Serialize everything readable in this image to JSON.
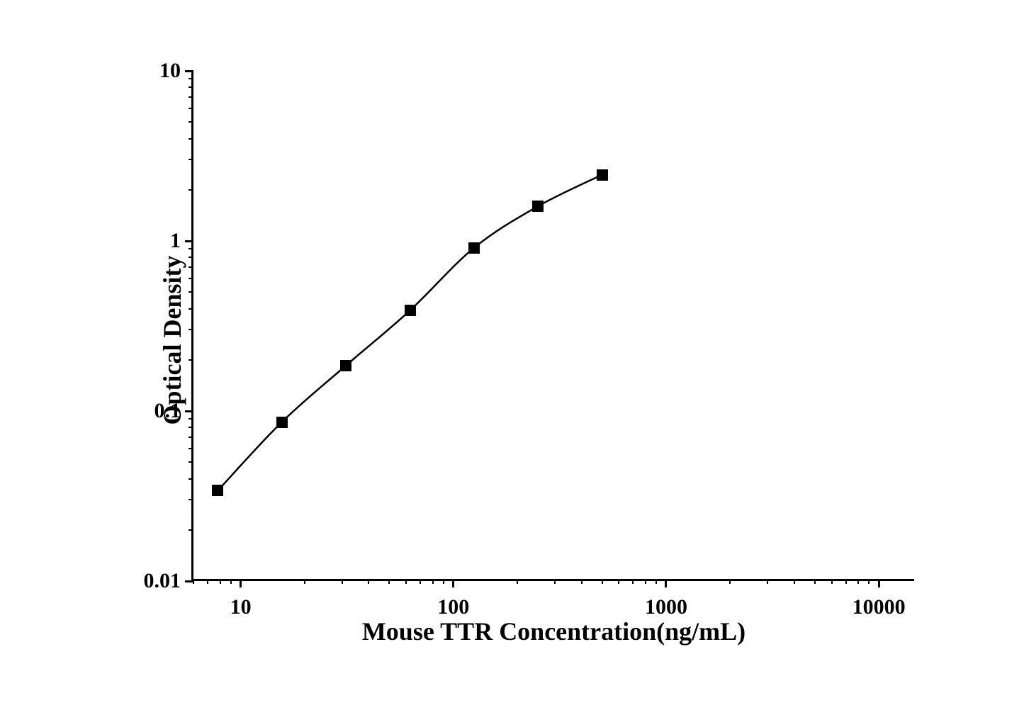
{
  "chart": {
    "type": "scatter-line",
    "xlabel": "Mouse TTR Concentration(ng/mL)",
    "ylabel": "Optical Density",
    "label_fontsize": 36,
    "tick_fontsize": 30,
    "background_color": "#ffffff",
    "line_color": "#000000",
    "marker_color": "#000000",
    "axis_color": "#000000",
    "line_width": 2.5,
    "marker_size": 16,
    "marker_style": "square",
    "x_scale": "log",
    "y_scale": "log",
    "xlim": [
      6,
      15000
    ],
    "ylim": [
      0.01,
      10
    ],
    "x_major_ticks": [
      10,
      100,
      1000,
      10000
    ],
    "y_major_ticks": [
      0.01,
      0.1,
      1,
      10
    ],
    "x_tick_labels": [
      "10",
      "100",
      "1000",
      "10000"
    ],
    "y_tick_labels": [
      "0.01",
      "0.1",
      "1",
      "10"
    ],
    "x_minor_ticks": [
      6,
      7,
      8,
      9,
      20,
      30,
      40,
      50,
      60,
      70,
      80,
      90,
      200,
      300,
      400,
      500,
      600,
      700,
      800,
      900,
      2000,
      3000,
      4000,
      5000,
      6000,
      7000,
      8000,
      9000
    ],
    "y_minor_ticks": [
      0.02,
      0.03,
      0.04,
      0.05,
      0.06,
      0.07,
      0.08,
      0.09,
      0.2,
      0.3,
      0.4,
      0.5,
      0.6,
      0.7,
      0.8,
      0.9,
      2,
      3,
      4,
      5,
      6,
      7,
      8,
      9
    ],
    "data": {
      "x": [
        7.8,
        15.6,
        31.25,
        62.5,
        125,
        250,
        500
      ],
      "y": [
        0.034,
        0.086,
        0.185,
        0.39,
        0.91,
        1.6,
        2.45
      ]
    }
  }
}
